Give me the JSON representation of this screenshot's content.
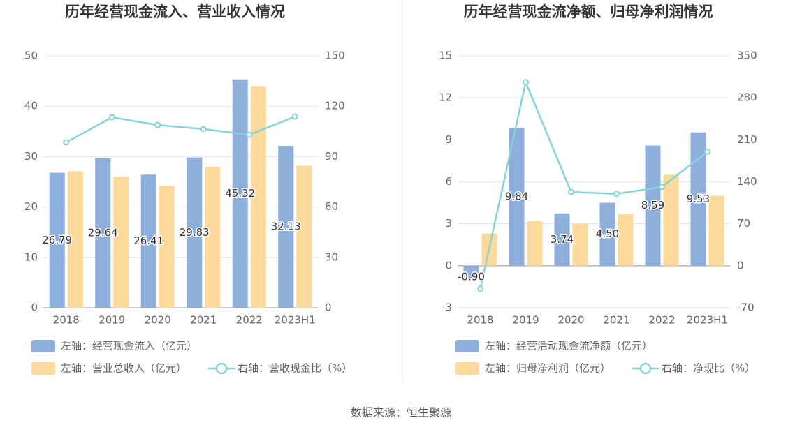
{
  "chart_data": [
    {
      "type": "bar",
      "title": "历年经营现金流入、营业收入情况",
      "categories": [
        "2018",
        "2019",
        "2020",
        "2021",
        "2022",
        "2023H1"
      ],
      "series": [
        {
          "name": "左轴：经营现金流入（亿元）",
          "color": "#8eaedc",
          "show_labels": true,
          "values": [
            26.79,
            29.64,
            26.41,
            29.83,
            45.32,
            32.13
          ]
        },
        {
          "name": "左轴：营业总收入（亿元）",
          "color": "#fdd99b",
          "values": [
            27.1,
            26.0,
            24.2,
            28.0,
            44.0,
            28.2
          ]
        },
        {
          "name": "右轴：营收现金比（%）",
          "type": "line",
          "axis": "y2",
          "color": "#86d4d8",
          "values": [
            98.5,
            113.4,
            108.8,
            106.4,
            103.0,
            113.8
          ]
        }
      ],
      "ylim": [
        0,
        50
      ],
      "yticks": [
        0,
        10,
        20,
        30,
        40,
        50
      ],
      "y2lim": [
        0,
        150
      ],
      "y2ticks": [
        0,
        30,
        60,
        90,
        120,
        150
      ],
      "grid": true,
      "legend": "bottom"
    },
    {
      "type": "bar",
      "title": "历年经营现金流净额、归母净利润情况",
      "categories": [
        "2018",
        "2019",
        "2020",
        "2021",
        "2022",
        "2023H1"
      ],
      "series": [
        {
          "name": "左轴：经营活动现金流净额（亿元）",
          "color": "#8eaedc",
          "show_labels": true,
          "values": [
            -0.9,
            9.84,
            3.74,
            4.5,
            8.59,
            9.53
          ],
          "value_labels": [
            "-0.90",
            "9.84",
            "3.74",
            "4.50",
            "8.59",
            "9.53"
          ]
        },
        {
          "name": "左轴：归母净利润（亿元）",
          "color": "#fdd99b",
          "values": [
            2.3,
            3.2,
            3.0,
            3.7,
            6.5,
            5.0
          ]
        },
        {
          "name": "右轴：净现比（%）",
          "type": "line",
          "axis": "y2",
          "color": "#86d4d8",
          "values": [
            -38.4,
            306,
            123,
            120,
            131.5,
            190
          ]
        }
      ],
      "ylim": [
        -3,
        15
      ],
      "yticks": [
        -3,
        0,
        3,
        6,
        9,
        12,
        15
      ],
      "y2lim": [
        -70,
        350
      ],
      "y2ticks": [
        -70,
        0,
        70,
        140,
        210,
        280,
        350
      ],
      "grid": true,
      "legend": "bottom"
    }
  ],
  "source": "数据来源：恒生聚源"
}
